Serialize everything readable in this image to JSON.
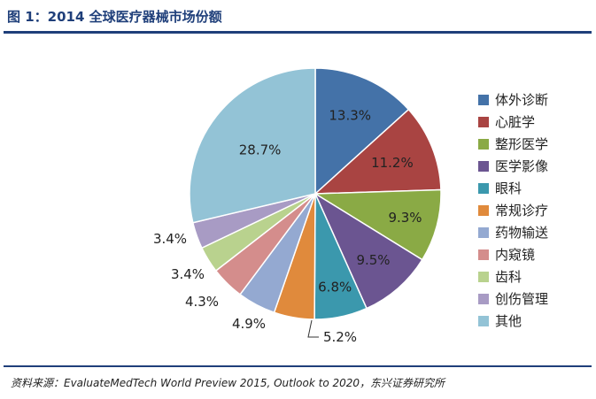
{
  "figure_title": "图 1：2014 全球医疗器械市场份额",
  "source_note": "资料来源：EvaluateMedTech World Preview 2015, Outlook to 2020，东兴证券研究所",
  "chart_data": {
    "type": "pie",
    "title": "",
    "unit": "%",
    "start_angle_deg": 0,
    "direction": "clockwise",
    "legend_position": "right",
    "slices": [
      {
        "name": "体外诊断",
        "value": 13.3,
        "label": "13.3%",
        "color": "#4472a8"
      },
      {
        "name": "心脏学",
        "value": 11.2,
        "label": "11.2%",
        "color": "#a94442"
      },
      {
        "name": "整形医学",
        "value": 9.3,
        "label": "9.3%",
        "color": "#8aaa45"
      },
      {
        "name": "医学影像",
        "value": 9.5,
        "label": "9.5%",
        "color": "#6b5591"
      },
      {
        "name": "眼科",
        "value": 6.8,
        "label": "6.8%",
        "color": "#3b98ad"
      },
      {
        "name": "常规诊疗",
        "value": 5.2,
        "label": "5.2%",
        "color": "#e08a3c"
      },
      {
        "name": "药物输送",
        "value": 4.9,
        "label": "4.9%",
        "color": "#94a9d1"
      },
      {
        "name": "内窥镜",
        "value": 4.3,
        "label": "4.3%",
        "color": "#d48d8c"
      },
      {
        "name": "齿科",
        "value": 3.4,
        "label": "3.4%",
        "color": "#b9d28e"
      },
      {
        "name": "创伤管理",
        "value": 3.4,
        "label": "3.4%",
        "color": "#a89bc4"
      },
      {
        "name": "其他",
        "value": 28.7,
        "label": "28.7%",
        "color": "#93c3d6"
      }
    ]
  }
}
